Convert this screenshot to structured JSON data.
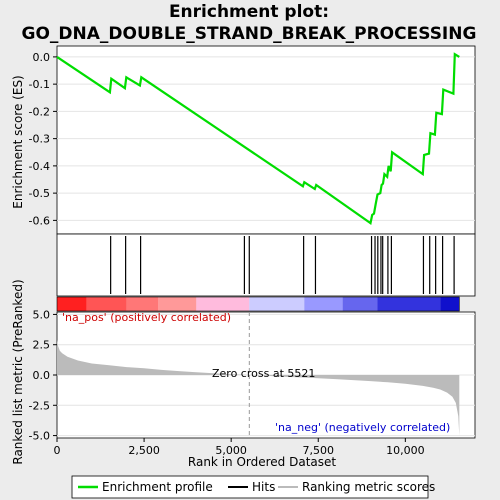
{
  "chart_data": {
    "type": "line",
    "title": "Enrichment plot: GO_DNA_DOUBLE_STRAND_BREAK_PROCESSING",
    "top_panel": {
      "ylabel": "Enrichment score (ES)",
      "ylim": [
        -0.65,
        0.04
      ],
      "yticks": [
        "0.0",
        "-0.1",
        "-0.2",
        "-0.3",
        "-0.4",
        "-0.5",
        "-0.6"
      ],
      "ytick_values": [
        0.0,
        -0.1,
        -0.2,
        -0.3,
        -0.4,
        -0.5,
        -0.6
      ],
      "series": [
        {
          "name": "Enrichment profile",
          "color": "#00dd00",
          "x": [
            0,
            1520,
            1560,
            1950,
            1990,
            2380,
            2420,
            7060,
            7100,
            7400,
            7440,
            9000,
            9050,
            9100,
            9150,
            9200,
            9280,
            9320,
            9360,
            9400,
            9480,
            9520,
            9580,
            9620,
            10500,
            10540,
            10680,
            10720,
            10850,
            10890,
            11050,
            11090,
            11380,
            11420,
            11550
          ],
          "y": [
            0.0,
            -0.13,
            -0.08,
            -0.115,
            -0.075,
            -0.105,
            -0.075,
            -0.475,
            -0.46,
            -0.485,
            -0.47,
            -0.61,
            -0.58,
            -0.575,
            -0.54,
            -0.505,
            -0.5,
            -0.47,
            -0.465,
            -0.43,
            -0.44,
            -0.4,
            -0.42,
            -0.35,
            -0.43,
            -0.36,
            -0.355,
            -0.28,
            -0.285,
            -0.205,
            -0.21,
            -0.12,
            -0.135,
            0.01,
            0.0
          ]
        }
      ]
    },
    "hits": {
      "name": "Hits",
      "x": [
        1540,
        1970,
        2400,
        5380,
        5520,
        7080,
        7420,
        9030,
        9130,
        9210,
        9300,
        9350,
        9500,
        9600,
        10520,
        10700,
        10870,
        11070,
        11400
      ]
    },
    "color_bar": {
      "colors": [
        "#ff2020",
        "#ff5555",
        "#ff7777",
        "#ff9999",
        "#ffbbdd",
        "#ccccff",
        "#9999ff",
        "#6666ee",
        "#3333dd",
        "#1010cc"
      ],
      "stops": [
        0,
        850,
        2000,
        2900,
        4000,
        5520,
        7100,
        8200,
        9200,
        11000,
        11550
      ]
    },
    "bottom_panel": {
      "ylabel": "Ranked list metric (PreRanked)",
      "ylim": [
        -5.2,
        5.2
      ],
      "yticks": [
        "5.0",
        "2.5",
        "0.0",
        "-2.5",
        "-5.0"
      ],
      "ytick_values": [
        5.0,
        2.5,
        0.0,
        -2.5,
        -5.0
      ],
      "series": [
        {
          "name": "Ranking metric scores",
          "color": "#bbbbbb",
          "x": [
            0,
            30,
            80,
            150,
            300,
            600,
            1000,
            1500,
            2000,
            2500,
            3000,
            3500,
            4000,
            4500,
            5000,
            5521,
            6000,
            6500,
            7000,
            7500,
            8000,
            8500,
            9000,
            9500,
            10000,
            10500,
            10800,
            11000,
            11200,
            11350,
            11450,
            11520,
            11550
          ],
          "y": [
            2.9,
            2.4,
            2.0,
            1.8,
            1.5,
            1.2,
            0.95,
            0.8,
            0.65,
            0.55,
            0.42,
            0.32,
            0.22,
            0.14,
            0.06,
            0.0,
            -0.07,
            -0.14,
            -0.2,
            -0.27,
            -0.34,
            -0.42,
            -0.5,
            -0.6,
            -0.72,
            -0.9,
            -1.05,
            -1.2,
            -1.45,
            -1.8,
            -2.3,
            -3.4,
            -5.0
          ]
        }
      ],
      "zero_cross_label": "Zero cross at 5521",
      "zero_cross_x": 5521,
      "pos_label": "'na_pos' (positively correlated)",
      "neg_label": "'na_neg' (negatively correlated)"
    },
    "xlabel": "Rank in Ordered Dataset",
    "xlim": [
      0,
      12000
    ],
    "xticks": [
      "0",
      "2,500",
      "5,000",
      "7,500",
      "10,000"
    ],
    "xtick_values": [
      0,
      2500,
      5000,
      7500,
      10000
    ],
    "legend": {
      "placement": "bottom",
      "items": [
        "Enrichment profile",
        "Hits",
        "Ranking metric scores"
      ]
    }
  }
}
